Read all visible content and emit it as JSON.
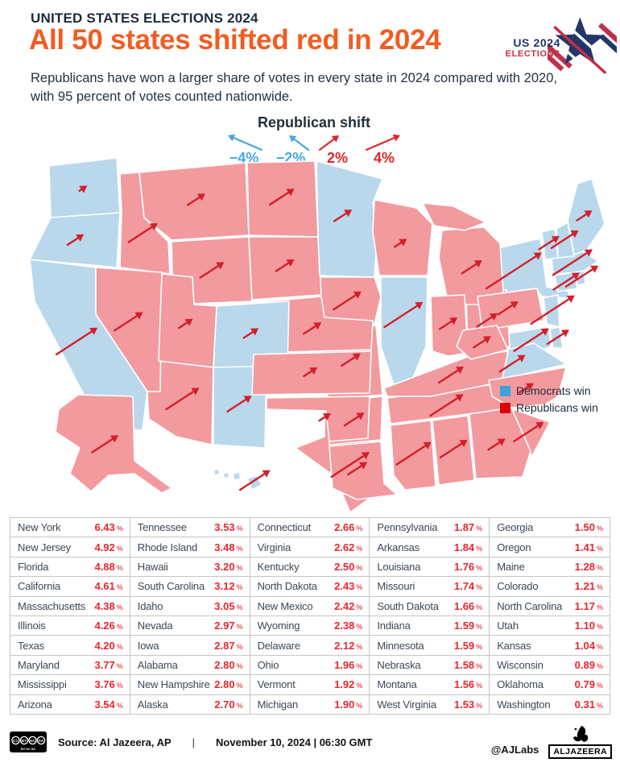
{
  "header": {
    "kicker": "UNITED STATES ELECTIONS 2024",
    "title": "All 50 states shifted red in 2024",
    "subtitle": "Republicans have won a larger share of votes in every state in 2024 compared with 2020, with 95 percent of votes counted nationwide.",
    "logo": {
      "line1": "US 2024",
      "line2": "ELECTIONS"
    }
  },
  "colors": {
    "state_dem": "#b9d8ec",
    "state_rep": "#f29a9e",
    "arrow": "#d31f2b",
    "legend_dem": "#3ba3dc",
    "legend_rep": "#e00008",
    "shift_blue": "#45a7e0",
    "shift_red": "#e0242b",
    "accent_orange": "#f25c21",
    "navy": "#1c2b3d"
  },
  "shift_legend": {
    "title": "Republican shift",
    "items": [
      {
        "label": "−4%",
        "color": "#45a7e0",
        "dir": -1,
        "len": 42
      },
      {
        "label": "−2%",
        "color": "#45a7e0",
        "dir": -1,
        "len": 24
      },
      {
        "label": "2%",
        "color": "#e0242b",
        "dir": 1,
        "len": 24
      },
      {
        "label": "4%",
        "color": "#e0242b",
        "dir": 1,
        "len": 42
      }
    ]
  },
  "map_legend": {
    "items": [
      {
        "label": "Democrats win",
        "color": "#3ba3dc"
      },
      {
        "label": "Republicans win",
        "color": "#e00008"
      }
    ]
  },
  "chart_data": {
    "type": "map",
    "title": "Republican shift by state, 2024 vs 2020",
    "unit": "%",
    "states": [
      {
        "name": "New York",
        "abbr": "NY",
        "shift": 6.43,
        "shift_label": "6.43",
        "winner": "D"
      },
      {
        "name": "New Jersey",
        "abbr": "NJ",
        "shift": 4.92,
        "shift_label": "4.92",
        "winner": "D"
      },
      {
        "name": "Florida",
        "abbr": "FL",
        "shift": 4.88,
        "shift_label": "4.88",
        "winner": "R"
      },
      {
        "name": "California",
        "abbr": "CA",
        "shift": 4.61,
        "shift_label": "4.61",
        "winner": "D"
      },
      {
        "name": "Massachusetts",
        "abbr": "MA",
        "shift": 4.38,
        "shift_label": "4.38",
        "winner": "D"
      },
      {
        "name": "Illinois",
        "abbr": "IL",
        "shift": 4.26,
        "shift_label": "4.26",
        "winner": "D"
      },
      {
        "name": "Texas",
        "abbr": "TX",
        "shift": 4.2,
        "shift_label": "4.20",
        "winner": "R"
      },
      {
        "name": "Maryland",
        "abbr": "MD",
        "shift": 3.77,
        "shift_label": "3.77",
        "winner": "D"
      },
      {
        "name": "Mississippi",
        "abbr": "MS",
        "shift": 3.76,
        "shift_label": "3.76",
        "winner": "R"
      },
      {
        "name": "Arizona",
        "abbr": "AZ",
        "shift": 3.54,
        "shift_label": "3.54",
        "winner": "R"
      },
      {
        "name": "Tennessee",
        "abbr": "TN",
        "shift": 3.53,
        "shift_label": "3.53",
        "winner": "R"
      },
      {
        "name": "Rhode Island",
        "abbr": "RI",
        "shift": 3.48,
        "shift_label": "3.48",
        "winner": "D"
      },
      {
        "name": "Hawaii",
        "abbr": "HI",
        "shift": 3.2,
        "shift_label": "3.20",
        "winner": "D"
      },
      {
        "name": "South Carolina",
        "abbr": "SC",
        "shift": 3.12,
        "shift_label": "3.12",
        "winner": "R"
      },
      {
        "name": "Idaho",
        "abbr": "ID",
        "shift": 3.05,
        "shift_label": "3.05",
        "winner": "R"
      },
      {
        "name": "Nevada",
        "abbr": "NV",
        "shift": 2.97,
        "shift_label": "2.97",
        "winner": "R"
      },
      {
        "name": "Iowa",
        "abbr": "IA",
        "shift": 2.87,
        "shift_label": "2.87",
        "winner": "R"
      },
      {
        "name": "Alabama",
        "abbr": "AL",
        "shift": 2.8,
        "shift_label": "2.80",
        "winner": "R"
      },
      {
        "name": "New Hampshire",
        "abbr": "NH",
        "shift": 2.8,
        "shift_label": "2.80",
        "winner": "D"
      },
      {
        "name": "Alaska",
        "abbr": "AK",
        "shift": 2.7,
        "shift_label": "2.70",
        "winner": "R"
      },
      {
        "name": "Connecticut",
        "abbr": "CT",
        "shift": 2.66,
        "shift_label": "2.66",
        "winner": "D"
      },
      {
        "name": "Virginia",
        "abbr": "VA",
        "shift": 2.62,
        "shift_label": "2.62",
        "winner": "D"
      },
      {
        "name": "Kentucky",
        "abbr": "KY",
        "shift": 2.5,
        "shift_label": "2.50",
        "winner": "R"
      },
      {
        "name": "North Dakota",
        "abbr": "ND",
        "shift": 2.43,
        "shift_label": "2.43",
        "winner": "R"
      },
      {
        "name": "New Mexico",
        "abbr": "NM",
        "shift": 2.42,
        "shift_label": "2.42",
        "winner": "D"
      },
      {
        "name": "Wyoming",
        "abbr": "WY",
        "shift": 2.38,
        "shift_label": "2.38",
        "winner": "R"
      },
      {
        "name": "Delaware",
        "abbr": "DE",
        "shift": 2.12,
        "shift_label": "2.12",
        "winner": "D"
      },
      {
        "name": "Ohio",
        "abbr": "OH",
        "shift": 1.96,
        "shift_label": "1.96",
        "winner": "R"
      },
      {
        "name": "Vermont",
        "abbr": "VT",
        "shift": 1.92,
        "shift_label": "1.92",
        "winner": "D"
      },
      {
        "name": "Michigan",
        "abbr": "MI",
        "shift": 1.9,
        "shift_label": "1.90",
        "winner": "R"
      },
      {
        "name": "Pennsylvania",
        "abbr": "PA",
        "shift": 1.87,
        "shift_label": "1.87",
        "winner": "R"
      },
      {
        "name": "Arkansas",
        "abbr": "AR",
        "shift": 1.84,
        "shift_label": "1.84",
        "winner": "R"
      },
      {
        "name": "Louisiana",
        "abbr": "LA",
        "shift": 1.76,
        "shift_label": "1.76",
        "winner": "R"
      },
      {
        "name": "Missouri",
        "abbr": "MO",
        "shift": 1.74,
        "shift_label": "1.74",
        "winner": "R"
      },
      {
        "name": "South Dakota",
        "abbr": "SD",
        "shift": 1.66,
        "shift_label": "1.66",
        "winner": "R"
      },
      {
        "name": "Indiana",
        "abbr": "IN",
        "shift": 1.59,
        "shift_label": "1.59",
        "winner": "R"
      },
      {
        "name": "Minnesota",
        "abbr": "MN",
        "shift": 1.59,
        "shift_label": "1.59",
        "winner": "D"
      },
      {
        "name": "Nebraska",
        "abbr": "NE",
        "shift": 1.58,
        "shift_label": "1.58",
        "winner": "R"
      },
      {
        "name": "Montana",
        "abbr": "MT",
        "shift": 1.56,
        "shift_label": "1.56",
        "winner": "R"
      },
      {
        "name": "West Virginia",
        "abbr": "WV",
        "shift": 1.53,
        "shift_label": "1.53",
        "winner": "R"
      },
      {
        "name": "Georgia",
        "abbr": "GA",
        "shift": 1.5,
        "shift_label": "1.50",
        "winner": "R"
      },
      {
        "name": "Oregon",
        "abbr": "OR",
        "shift": 1.41,
        "shift_label": "1.41",
        "winner": "D"
      },
      {
        "name": "Maine",
        "abbr": "ME",
        "shift": 1.28,
        "shift_label": "1.28",
        "winner": "D"
      },
      {
        "name": "Colorado",
        "abbr": "CO",
        "shift": 1.21,
        "shift_label": "1.21",
        "winner": "D"
      },
      {
        "name": "North Carolina",
        "abbr": "NC",
        "shift": 1.17,
        "shift_label": "1.17",
        "winner": "R"
      },
      {
        "name": "Utah",
        "abbr": "UT",
        "shift": 1.1,
        "shift_label": "1.10",
        "winner": "R"
      },
      {
        "name": "Kansas",
        "abbr": "KS",
        "shift": 1.04,
        "shift_label": "1.04",
        "winner": "R"
      },
      {
        "name": "Wisconsin",
        "abbr": "WI",
        "shift": 0.89,
        "shift_label": "0.89",
        "winner": "R"
      },
      {
        "name": "Oklahoma",
        "abbr": "OK",
        "shift": 0.79,
        "shift_label": "0.79",
        "winner": "R"
      },
      {
        "name": "Washington",
        "abbr": "WA",
        "shift": 0.31,
        "shift_label": "0.31",
        "winner": "D"
      }
    ]
  },
  "footer": {
    "license": "CC BY-NC-SA",
    "source": "Source:  Al Jazeera, AP",
    "divider": "|",
    "date": "November 10, 2024 | 06:30 GMT",
    "credit": "@AJLabs",
    "brand": "ALJAZEERA"
  }
}
